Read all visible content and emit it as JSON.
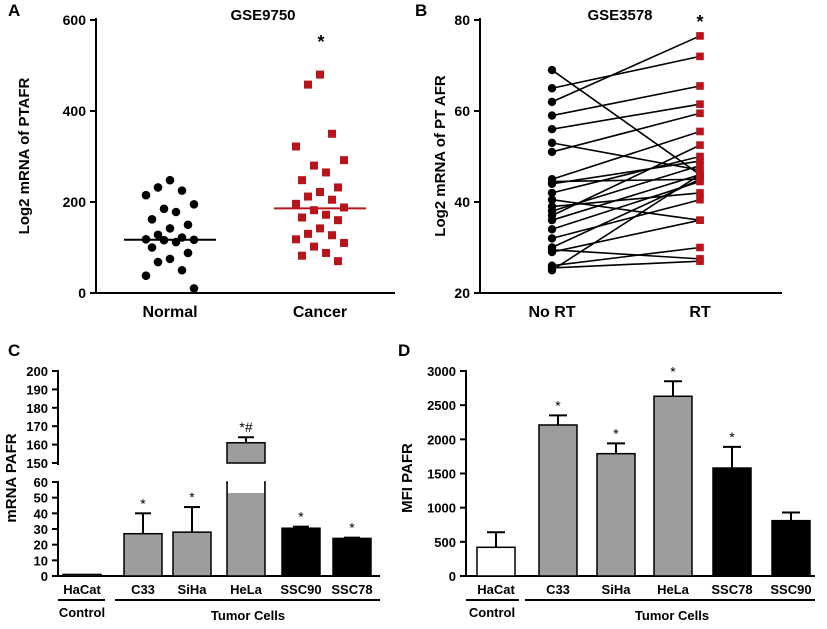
{
  "chart_data": [
    {
      "id": "A",
      "type": "scatter",
      "panel_letter": "A",
      "title": "GSE9750",
      "ylabel": "Log2 mRNA of PTAFR",
      "ylim": [
        0,
        600
      ],
      "yticks": [
        "0",
        "200",
        "400",
        "600"
      ],
      "categories": [
        "Normal",
        "Cancer"
      ],
      "annotation": "*",
      "colors": {
        "Normal": "#000000",
        "Cancer": "#b8141b"
      },
      "series": [
        {
          "name": "Normal",
          "median": 117,
          "values": [
            248,
            232,
            225,
            215,
            195,
            185,
            178,
            162,
            150,
            142,
            128,
            122,
            118,
            117,
            116,
            112,
            100,
            88,
            75,
            68,
            50,
            38,
            10
          ]
        },
        {
          "name": "Cancer",
          "median": 186,
          "values": [
            480,
            458,
            350,
            322,
            292,
            280,
            265,
            248,
            232,
            222,
            212,
            205,
            196,
            188,
            182,
            172,
            166,
            160,
            142,
            130,
            127,
            118,
            110,
            102,
            88,
            82,
            70
          ]
        }
      ]
    },
    {
      "id": "B",
      "type": "line",
      "panel_letter": "B",
      "title": "GSE3578",
      "ylabel": "Log2 mRNA of PT AFR",
      "ylim": [
        20,
        80
      ],
      "yticks": [
        "20",
        "40",
        "60",
        "80"
      ],
      "categories": [
        "No RT",
        "RT"
      ],
      "annotation": "*",
      "pairs": [
        [
          69,
          46
        ],
        [
          65,
          72
        ],
        [
          62,
          76.5
        ],
        [
          59,
          65.5
        ],
        [
          56,
          61.5
        ],
        [
          53,
          47
        ],
        [
          51,
          59.5
        ],
        [
          45,
          55.5
        ],
        [
          44.5,
          45
        ],
        [
          44,
          49
        ],
        [
          42,
          50
        ],
        [
          40.5,
          36
        ],
        [
          39,
          42
        ],
        [
          38,
          48
        ],
        [
          37,
          52.5
        ],
        [
          36,
          46
        ],
        [
          34,
          44.5
        ],
        [
          32,
          40.5
        ],
        [
          30,
          45
        ],
        [
          29.5,
          27.5
        ],
        [
          29,
          36
        ],
        [
          26,
          30
        ],
        [
          25.5,
          27
        ],
        [
          25,
          46
        ]
      ]
    },
    {
      "id": "C",
      "type": "bar",
      "panel_letter": "C",
      "ylabel": "mRNA PAFR",
      "ylim_lower": [
        0,
        60
      ],
      "ylim_upper": [
        150,
        200
      ],
      "yticks_lower": [
        "0",
        "10",
        "20",
        "30",
        "40",
        "50",
        "60"
      ],
      "yticks_upper": [
        "150",
        "160",
        "170",
        "180",
        "190",
        "200"
      ],
      "categories": [
        "HaCat",
        "C33",
        "SiHa",
        "HeLa",
        "SSC90",
        "SSC78"
      ],
      "values": [
        1,
        27,
        28,
        161,
        30.5,
        24
      ],
      "errors": [
        0,
        13,
        16,
        3,
        1,
        0.5
      ],
      "fills": [
        "#ffffff",
        "#9d9d9d",
        "#9d9d9d",
        "#9d9d9d",
        "#000000",
        "#000000"
      ],
      "markers": [
        "",
        "*",
        "*",
        "*#",
        "*",
        "*"
      ],
      "group_labels": [
        "Control",
        "Tumor Cells"
      ]
    },
    {
      "id": "D",
      "type": "bar",
      "panel_letter": "D",
      "ylabel": "MFI PAFR",
      "ylim": [
        0,
        3000
      ],
      "yticks": [
        "0",
        "500",
        "1000",
        "1500",
        "2000",
        "2500",
        "3000"
      ],
      "categories": [
        "HaCat",
        "C33",
        "SiHa",
        "HeLa",
        "SSC78",
        "SSC90"
      ],
      "values": [
        420,
        2210,
        1790,
        2630,
        1580,
        810
      ],
      "errors": [
        220,
        140,
        150,
        220,
        310,
        120
      ],
      "fills": [
        "#ffffff",
        "#9d9d9d",
        "#9d9d9d",
        "#9d9d9d",
        "#000000",
        "#000000"
      ],
      "markers": [
        "",
        "*",
        "*",
        "*",
        "*",
        ""
      ],
      "group_labels": [
        "Control",
        "Tumor Cells"
      ]
    }
  ]
}
